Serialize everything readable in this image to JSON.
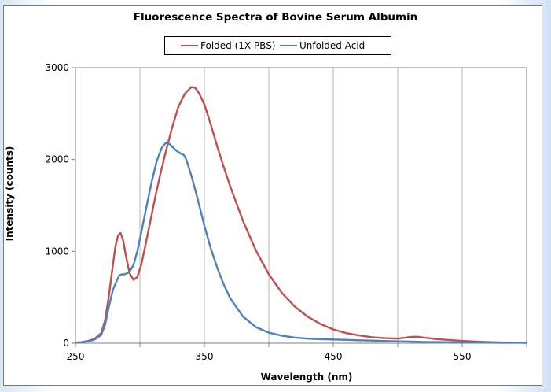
{
  "chart_data": {
    "type": "line",
    "title": "Fluorescence Spectra of Bovine Serum Albumin",
    "xlabel": "Wavelength (nm)",
    "ylabel": "Intensity (counts)",
    "xlim": [
      250,
      600
    ],
    "ylim": [
      0,
      3000
    ],
    "xticks": [
      250,
      350,
      450,
      550
    ],
    "yticks": [
      0,
      1000,
      2000,
      3000
    ],
    "x_gridlines": [
      300,
      350,
      400,
      450,
      500,
      550,
      600
    ],
    "grid": "vertical",
    "legend_position": "top",
    "series": [
      {
        "name": "Folded (1X PBS)",
        "color": "#c0504d",
        "x": [
          250,
          255,
          260,
          265,
          270,
          273,
          276,
          279,
          281,
          283,
          285,
          287,
          289,
          292,
          295,
          298,
          301,
          304,
          308,
          312,
          316,
          320,
          325,
          330,
          335,
          340,
          343,
          346,
          350,
          355,
          360,
          365,
          370,
          380,
          390,
          400,
          410,
          420,
          430,
          440,
          450,
          460,
          470,
          480,
          490,
          500,
          505,
          510,
          515,
          520,
          530,
          540,
          550,
          560,
          570,
          580,
          590,
          600
        ],
        "y": [
          5,
          12,
          25,
          50,
          110,
          250,
          520,
          850,
          1050,
          1170,
          1200,
          1120,
          960,
          760,
          690,
          720,
          850,
          1050,
          1320,
          1600,
          1850,
          2080,
          2350,
          2580,
          2720,
          2790,
          2780,
          2720,
          2600,
          2380,
          2140,
          1920,
          1710,
          1330,
          1010,
          750,
          550,
          400,
          290,
          210,
          150,
          110,
          85,
          65,
          55,
          50,
          58,
          68,
          70,
          62,
          45,
          35,
          25,
          18,
          12,
          8,
          6,
          5
        ]
      },
      {
        "name": "Unfolded Acid",
        "color": "#4f81bd",
        "x": [
          250,
          255,
          260,
          265,
          270,
          273,
          276,
          279,
          282,
          284,
          286,
          288,
          290,
          292,
          295,
          298,
          301,
          305,
          309,
          313,
          317,
          320,
          323,
          325,
          328,
          331,
          334,
          336,
          340,
          345,
          350,
          355,
          360,
          365,
          370,
          380,
          390,
          400,
          410,
          420,
          430,
          440,
          450,
          460,
          470,
          480,
          490,
          500,
          510,
          520,
          530,
          540,
          550,
          560,
          570,
          580,
          590,
          600
        ],
        "y": [
          5,
          10,
          20,
          40,
          90,
          200,
          400,
          580,
          680,
          740,
          750,
          750,
          760,
          780,
          850,
          1000,
          1200,
          1480,
          1750,
          1980,
          2130,
          2180,
          2170,
          2140,
          2100,
          2070,
          2050,
          2000,
          1820,
          1560,
          1280,
          1030,
          820,
          640,
          490,
          290,
          175,
          115,
          82,
          62,
          50,
          44,
          40,
          36,
          32,
          28,
          24,
          20,
          17,
          14,
          12,
          10,
          8,
          7,
          6,
          5,
          5,
          5
        ]
      }
    ]
  }
}
